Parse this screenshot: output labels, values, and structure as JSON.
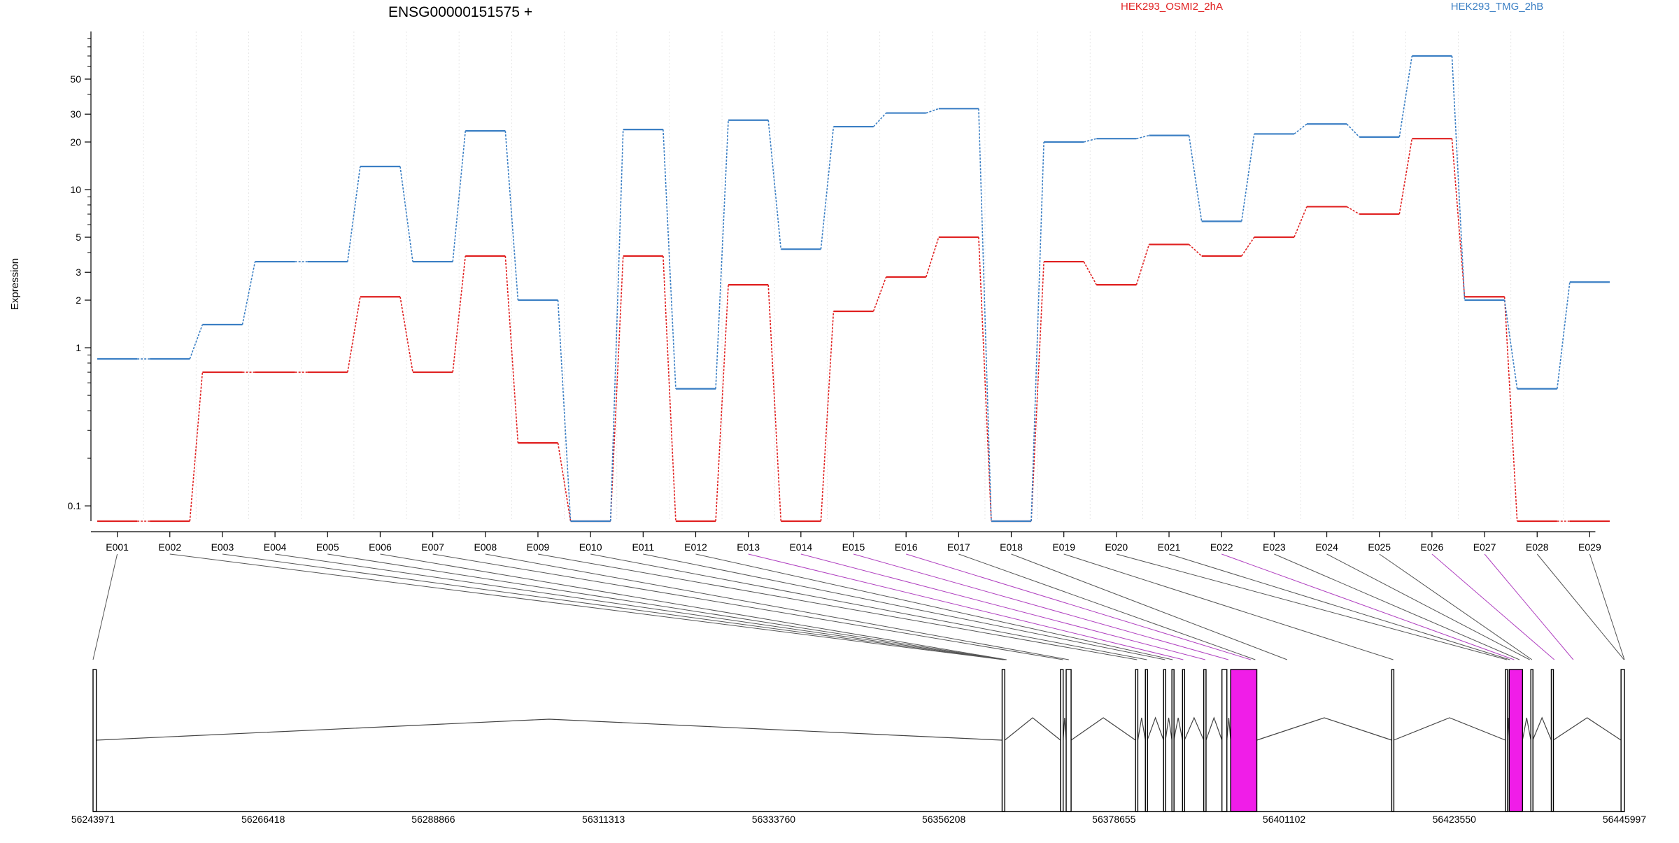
{
  "chart_data": {
    "type": "line",
    "title": "ENSG00000151575 +",
    "ylabel": "Expression",
    "y_scale": "log",
    "ylim": [
      0.08,
      100
    ],
    "y_ticks": [
      0.1,
      1,
      2,
      3,
      5,
      10,
      20,
      30,
      50
    ],
    "y_tick_labels": [
      "0.1",
      "1",
      "2",
      "3",
      "5",
      "10",
      "20",
      "30",
      "50"
    ],
    "grid": "vertical dotted lines at exon boundaries",
    "legend": "top-right",
    "categories": [
      "E001",
      "E002",
      "E003",
      "E004",
      "E005",
      "E006",
      "E007",
      "E008",
      "E009",
      "E010",
      "E011",
      "E012",
      "E013",
      "E014",
      "E015",
      "E016",
      "E017",
      "E018",
      "E019",
      "E020",
      "E021",
      "E022",
      "E023",
      "E024",
      "E025",
      "E026",
      "E027",
      "E028",
      "E029"
    ],
    "series": [
      {
        "name": "HEK293_OSMI2_2hA",
        "color": "#e02020",
        "values": [
          0.08,
          0.08,
          0.7,
          0.7,
          0.7,
          2.1,
          0.7,
          3.8,
          0.25,
          0.08,
          3.8,
          0.08,
          2.5,
          0.08,
          1.7,
          2.8,
          5.0,
          0.08,
          3.5,
          2.5,
          4.5,
          3.8,
          5.0,
          7.8,
          7.0,
          21.0,
          2.1,
          0.08,
          0.08
        ]
      },
      {
        "name": "HEK293_TMG_2hB",
        "color": "#3b7fc4",
        "values": [
          0.85,
          0.85,
          1.4,
          3.5,
          3.5,
          14.0,
          3.5,
          23.5,
          2.0,
          0.08,
          24.0,
          0.55,
          27.5,
          4.2,
          25.0,
          30.5,
          32.5,
          0.08,
          20.0,
          21.0,
          22.0,
          6.3,
          22.5,
          26.0,
          21.5,
          70.0,
          2.0,
          0.55,
          2.6
        ]
      }
    ],
    "genomic_axis": {
      "tick_labels": [
        "56243971",
        "56266418",
        "56288866",
        "56311313",
        "56333760",
        "56356208",
        "56378655",
        "56401102",
        "56423550",
        "56445997"
      ],
      "range": [
        56243971,
        56445997
      ]
    },
    "exon_positions": [
      56243971,
      56364050,
      56364160,
      56364270,
      56364380,
      56364490,
      56371950,
      56372700,
      56381700,
      56383000,
      56385400,
      56386400,
      56387800,
      56390700,
      56393750,
      56396700,
      56397300,
      56401500,
      56415500,
      56430500,
      56430900,
      56431450,
      56432150,
      56433500,
      56433800,
      56436750,
      56439250,
      56445950,
      56445997
    ],
    "highlighted_exons": [
      "E013",
      "E014",
      "E015",
      "E016",
      "E022",
      "E026",
      "E027"
    ],
    "gene_model": {
      "exons": [
        {
          "start": 56243971,
          "end": 56244400,
          "fill": "#ffffff"
        },
        {
          "start": 56363900,
          "end": 56364250,
          "fill": "#ffffff"
        },
        {
          "start": 56371600,
          "end": 56371950,
          "fill": "#ffffff"
        },
        {
          "start": 56372350,
          "end": 56373000,
          "fill": "#ffffff"
        },
        {
          "start": 56381500,
          "end": 56381800,
          "fill": "#ffffff"
        },
        {
          "start": 56382800,
          "end": 56383050,
          "fill": "#ffffff"
        },
        {
          "start": 56385200,
          "end": 56385450,
          "fill": "#ffffff"
        },
        {
          "start": 56386300,
          "end": 56386550,
          "fill": "#ffffff"
        },
        {
          "start": 56387700,
          "end": 56387950,
          "fill": "#ffffff"
        },
        {
          "start": 56390500,
          "end": 56390800,
          "fill": "#ffffff"
        },
        {
          "start": 56392900,
          "end": 56393550,
          "fill": "#ffffff"
        },
        {
          "start": 56394050,
          "end": 56397500,
          "fill": "#f01de8"
        },
        {
          "start": 56415300,
          "end": 56415550,
          "fill": "#ffffff"
        },
        {
          "start": 56430300,
          "end": 56430550,
          "fill": "#ffffff"
        },
        {
          "start": 56430800,
          "end": 56432550,
          "fill": "#f01de8"
        },
        {
          "start": 56433650,
          "end": 56433900,
          "fill": "#ffffff"
        },
        {
          "start": 56436350,
          "end": 56436600,
          "fill": "#ffffff"
        },
        {
          "start": 56445550,
          "end": 56445997,
          "fill": "#ffffff"
        }
      ]
    }
  }
}
